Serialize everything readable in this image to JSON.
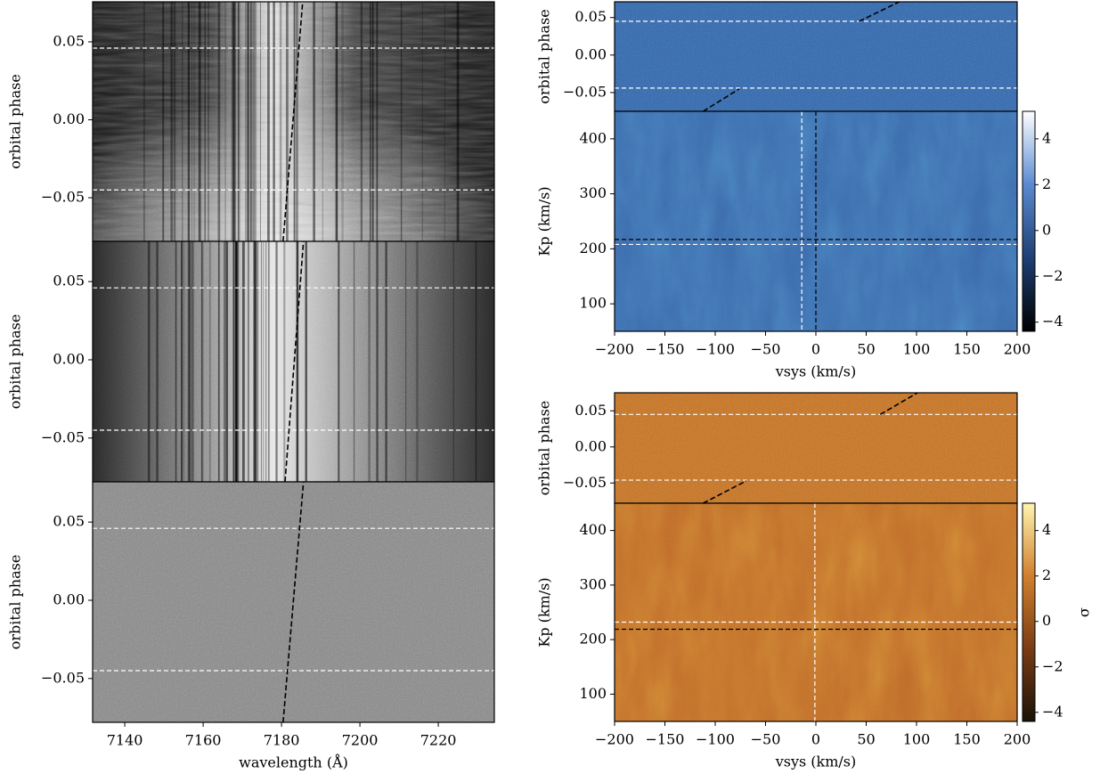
{
  "chart_data": [
    {
      "type": "heatmap",
      "ylabel": "orbital phase",
      "xlim": [
        7131.8,
        7234.3
      ],
      "ylim": [
        -0.078,
        0.0757
      ],
      "yticks": [
        0.05,
        {
          "value": 0,
          "label": "0.00"
        },
        {
          "value": -0.05,
          "label": "−0.05"
        }
      ],
      "cmap": [
        "#101010",
        "#3a3a3a",
        "#e8e8e8"
      ],
      "hlines": [
        {
          "y": 0.046,
          "color": "#ffffff"
        },
        {
          "y": -0.045,
          "color": "#ffffff"
        }
      ],
      "lines": [
        {
          "x": [
            7180.4,
            7185.4
          ],
          "y": [
            -0.078,
            0.0757
          ],
          "color": "#000000"
        }
      ]
    },
    {
      "type": "heatmap",
      "ylabel": "orbital phase",
      "xlim": [
        7131.8,
        7234.3
      ],
      "ylim": [
        -0.078,
        0.0757
      ],
      "yticks": [
        0.05,
        {
          "value": 0,
          "label": "0.00"
        },
        {
          "value": -0.05,
          "label": "−0.05"
        }
      ],
      "cmap": [
        "#2a2a2a",
        "#9a9a9a",
        "#e6e6e6"
      ],
      "hlines": [
        {
          "y": 0.046,
          "color": "#ffffff"
        },
        {
          "y": -0.045,
          "color": "#ffffff"
        }
      ],
      "lines": [
        {
          "x": [
            7180.9,
            7185.6
          ],
          "y": [
            -0.078,
            0.0757
          ],
          "color": "#000000"
        }
      ]
    },
    {
      "type": "heatmap",
      "ylabel": "orbital phase",
      "xlabel": "wavelength (Å)",
      "xlim": [
        7131.8,
        7234.3
      ],
      "ylim": [
        -0.078,
        0.0757
      ],
      "xticks": [
        7140,
        7160,
        7180,
        7200,
        7220
      ],
      "yticks": [
        0.05,
        {
          "value": 0,
          "label": "0.00"
        },
        {
          "value": -0.05,
          "label": "−0.05"
        }
      ],
      "cmap": [
        "#7e7e7e",
        "#8a8a8a",
        "#8e8e8e"
      ],
      "hlines": [
        {
          "y": 0.046,
          "color": "#ffffff"
        },
        {
          "y": -0.045,
          "color": "#ffffff"
        }
      ],
      "lines": [
        {
          "x": [
            7180.4,
            7185.6
          ],
          "y": [
            -0.078,
            0.0757
          ],
          "color": "#000000"
        }
      ]
    },
    {
      "type": "heatmap",
      "ylabel": "orbital phase",
      "xlim": [
        -200,
        200
      ],
      "ylim": [
        -0.075,
        0.071
      ],
      "yticks": [
        0.05,
        {
          "value": 0,
          "label": "0.00"
        },
        {
          "value": -0.05,
          "label": "−0.05"
        }
      ],
      "cmap": [
        "#1c3c6c",
        "#3b6aac",
        "#6b99d8"
      ],
      "hlines": [
        {
          "y": 0.045,
          "color": "#ffffff"
        },
        {
          "y": -0.044,
          "color": "#ffffff"
        }
      ],
      "lines": [
        {
          "x": [
            43,
            83
          ],
          "y": [
            0.045,
            0.071
          ],
          "color": "#000000"
        },
        {
          "x": [
            -112,
            -76
          ],
          "y": [
            -0.075,
            -0.045
          ],
          "color": "#000000"
        }
      ]
    },
    {
      "type": "heatmap",
      "ylabel": "Kp (km/s)",
      "xlabel": "vsys (km/s)",
      "xlim": [
        -200,
        200
      ],
      "ylim": [
        50,
        450
      ],
      "xticks": [
        {
          "value": -200,
          "label": "−200"
        },
        {
          "value": -150,
          "label": "−150"
        },
        {
          "value": -100,
          "label": "−100"
        },
        {
          "value": -50,
          "label": "−50"
        },
        0,
        50,
        100,
        150,
        200
      ],
      "yticks": [
        100,
        200,
        300,
        400
      ],
      "cmap": [
        "#1c3c6c",
        "#3b6aac",
        "#7aa6e0"
      ],
      "hlines": [
        {
          "y": 217,
          "color": "#000000"
        },
        {
          "y": 208,
          "color": "#ffffff"
        }
      ],
      "vlines": [
        {
          "x": -14,
          "color": "#ffffff"
        },
        {
          "x": 0,
          "color": "#000000"
        }
      ],
      "colorbar": {
        "lim": [
          -4.4,
          5.2
        ],
        "colors": [
          "#000000",
          "#1f3f73",
          "#5a8ad0",
          "#ffffff"
        ],
        "ticks": [
          {
            "value": -4,
            "label": "−4"
          },
          {
            "value": -2,
            "label": "−2"
          },
          0,
          2,
          4
        ]
      }
    },
    {
      "type": "heatmap",
      "ylabel": "orbital phase",
      "xlim": [
        -200,
        200
      ],
      "ylim": [
        -0.078,
        0.075
      ],
      "yticks": [
        0.05,
        {
          "value": 0,
          "label": "0.00"
        },
        {
          "value": -0.05,
          "label": "−0.05"
        }
      ],
      "cmap": [
        "#8a4a1c",
        "#c4742e",
        "#e8a050"
      ],
      "hlines": [
        {
          "y": 0.045,
          "color": "#ffffff"
        },
        {
          "y": -0.046,
          "color": "#ffffff"
        }
      ],
      "lines": [
        {
          "x": [
            64,
            101
          ],
          "y": [
            0.045,
            0.075
          ],
          "color": "#000000"
        },
        {
          "x": [
            -112,
            -69
          ],
          "y": [
            -0.078,
            -0.047
          ],
          "color": "#000000"
        }
      ]
    },
    {
      "type": "heatmap",
      "ylabel": "Kp (km/s)",
      "xlabel": "vsys (km/s)",
      "xlim": [
        -200,
        200
      ],
      "ylim": [
        50,
        450
      ],
      "xticks": [
        {
          "value": -200,
          "label": "−200"
        },
        {
          "value": -150,
          "label": "−150"
        },
        {
          "value": -100,
          "label": "−100"
        },
        {
          "value": -50,
          "label": "−50"
        },
        0,
        50,
        100,
        150,
        200
      ],
      "yticks": [
        100,
        200,
        300,
        400
      ],
      "cmap": [
        "#7a3c14",
        "#c06c2a",
        "#f0b060"
      ],
      "hlines": [
        {
          "y": 232,
          "color": "#ffffff"
        },
        {
          "y": 219,
          "color": "#000000"
        }
      ],
      "vlines": [
        {
          "x": -1,
          "color": "#ffffff"
        }
      ],
      "colorbar": {
        "lim": [
          -4.4,
          5.2
        ],
        "colors": [
          "#1a1208",
          "#7a3c14",
          "#d0802e",
          "#fff4b0"
        ],
        "label": "σ",
        "ticks": [
          {
            "value": -4,
            "label": "−4"
          },
          {
            "value": -2,
            "label": "−2"
          },
          0,
          2,
          4
        ]
      }
    }
  ]
}
